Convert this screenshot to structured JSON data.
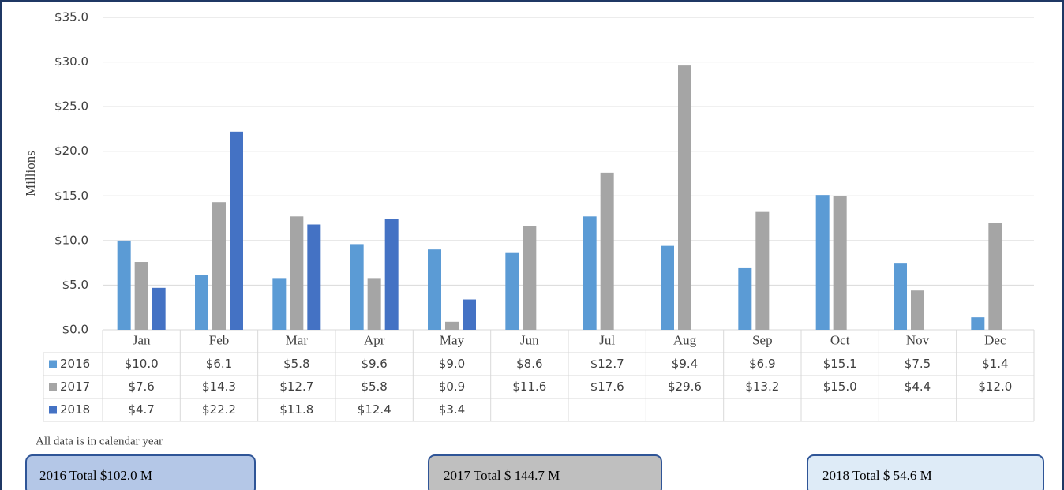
{
  "chart_data": {
    "type": "bar",
    "y_label": "Millions",
    "categories": [
      "Jan",
      "Feb",
      "Mar",
      "Apr",
      "May",
      "Jun",
      "Jul",
      "Aug",
      "Sep",
      "Oct",
      "Nov",
      "Dec"
    ],
    "series": [
      {
        "name": "2016",
        "color": "#5b9bd5",
        "values": [
          10.0,
          6.1,
          5.8,
          9.6,
          9.0,
          8.6,
          12.7,
          9.4,
          6.9,
          15.1,
          7.5,
          1.4
        ],
        "value_labels": [
          "$10.0",
          "$6.1",
          "$5.8",
          "$9.6",
          "$9.0",
          "$8.6",
          "$12.7",
          "$9.4",
          "$6.9",
          "$15.1",
          "$7.5",
          "$1.4"
        ]
      },
      {
        "name": "2017",
        "color": "#a5a5a5",
        "values": [
          7.6,
          14.3,
          12.7,
          5.8,
          0.9,
          11.6,
          17.6,
          29.6,
          13.2,
          15.0,
          4.4,
          12.0
        ],
        "value_labels": [
          "$7.6",
          "$14.3",
          "$12.7",
          "$5.8",
          "$0.9",
          "$11.6",
          "$17.6",
          "$29.6",
          "$13.2",
          "$15.0",
          "$4.4",
          "$12.0"
        ]
      },
      {
        "name": "2018",
        "color": "#4472c4",
        "values": [
          4.7,
          22.2,
          11.8,
          12.4,
          3.4,
          null,
          null,
          null,
          null,
          null,
          null,
          null
        ],
        "value_labels": [
          "$4.7",
          "$22.2",
          "$11.8",
          "$12.4",
          "$3.4",
          null,
          null,
          null,
          null,
          null,
          null,
          null
        ]
      }
    ],
    "ylim": [
      0,
      35
    ],
    "yticks": [
      {
        "value": 0,
        "label": "$0.0"
      },
      {
        "value": 5,
        "label": "$5.0"
      },
      {
        "value": 10,
        "label": "$10.0"
      },
      {
        "value": 15,
        "label": "$15.0"
      },
      {
        "value": 20,
        "label": "$20.0"
      },
      {
        "value": 25,
        "label": "$25.0"
      },
      {
        "value": 30,
        "label": "$30.0"
      },
      {
        "value": 35,
        "label": "$35.0"
      }
    ],
    "grid": true
  },
  "note": "All data is in calendar year",
  "totals": [
    "2016 Total $102.0 M",
    "2017  Total $ 144.7 M",
    "2018  Total $ 54.6 M"
  ]
}
